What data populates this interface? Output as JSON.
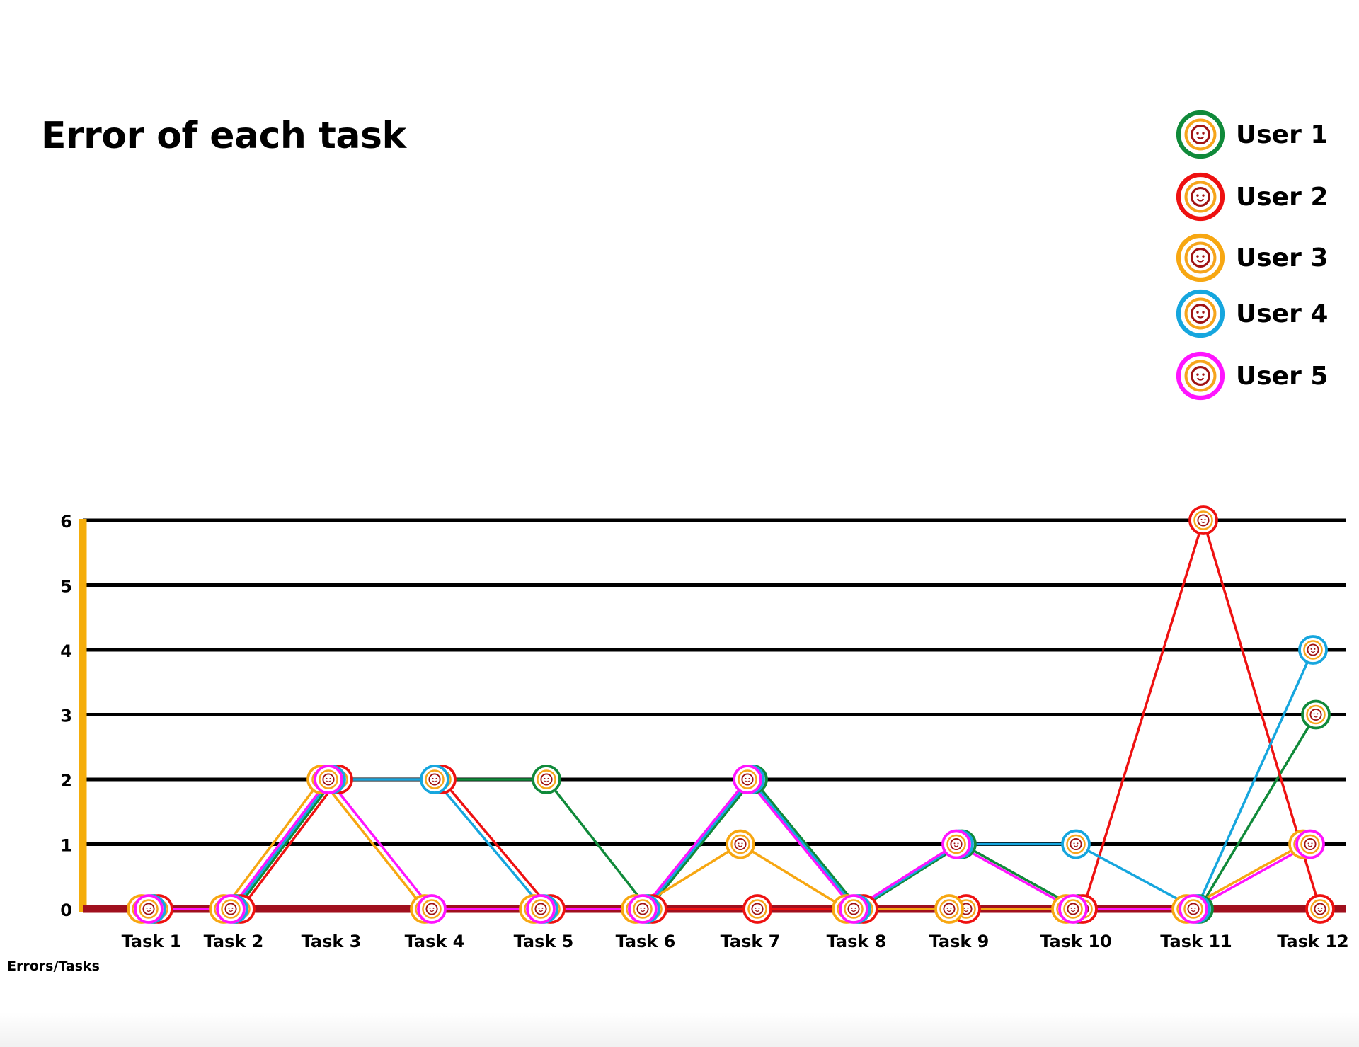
{
  "chart_data": {
    "type": "line",
    "title": "Error of each task",
    "footer_label": "Errors/Tasks",
    "categories": [
      "Task 1",
      "Task 2",
      "Task 3",
      "Task 4",
      "Task 5",
      "Task 6",
      "Task 7",
      "Task 8",
      "Task 9",
      "Task 10",
      "Task 11",
      "Task 12"
    ],
    "y_ticks": [
      0,
      1,
      2,
      3,
      4,
      5,
      6
    ],
    "ylim": [
      0,
      6
    ],
    "grid": true,
    "legend_position": "top-right",
    "series": [
      {
        "name": "User 1",
        "color": "#108a3a",
        "values": [
          0,
          0,
          2,
          2,
          2,
          0,
          2,
          0,
          1,
          0,
          0,
          3
        ]
      },
      {
        "name": "User 2",
        "color": "#ee1111",
        "values": [
          0,
          0,
          2,
          2,
          0,
          0,
          0,
          0,
          0,
          0,
          6,
          0
        ]
      },
      {
        "name": "User 3",
        "color": "#f7a712",
        "values": [
          0,
          0,
          2,
          0,
          0,
          0,
          1,
          0,
          0,
          0,
          0,
          1
        ]
      },
      {
        "name": "User 4",
        "color": "#16a6de",
        "values": [
          0,
          0,
          2,
          2,
          0,
          0,
          2,
          0,
          1,
          1,
          0,
          4
        ]
      },
      {
        "name": "User 5",
        "color": "#ff14ff",
        "values": [
          0,
          0,
          2,
          0,
          0,
          0,
          2,
          0,
          1,
          0,
          0,
          1
        ]
      }
    ],
    "axis_colors": {
      "y_axis": "#f5ad0a",
      "x_axis": "#a0101e",
      "grid": "#000000"
    },
    "marker_icon": "face-emoji-icon"
  }
}
